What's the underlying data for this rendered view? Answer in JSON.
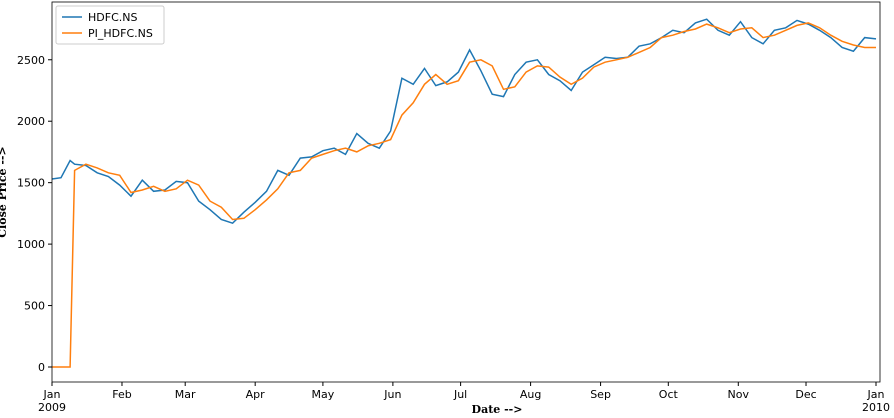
{
  "chart_data": {
    "type": "line",
    "x_label": "Date -->",
    "y_label": "Close Price -->",
    "x": [
      0,
      4,
      8,
      10,
      15,
      20,
      25,
      30,
      35,
      40,
      45,
      50,
      55,
      60,
      65,
      70,
      75,
      80,
      85,
      90,
      95,
      100,
      105,
      110,
      115,
      120,
      125,
      130,
      135,
      140,
      145,
      150,
      155,
      160,
      165,
      170,
      175,
      180,
      185,
      190,
      195,
      200,
      205,
      210,
      215,
      220,
      225,
      230,
      235,
      240,
      245,
      250,
      255,
      260,
      265,
      270,
      275,
      280,
      285,
      290,
      295,
      300,
      305,
      310,
      315,
      320,
      325,
      330,
      335,
      340,
      345,
      350,
      355,
      360,
      365
    ],
    "series": [
      {
        "name": "HDFC.NS",
        "color": "#1f77b4",
        "values": [
          1530,
          1540,
          1680,
          1650,
          1640,
          1580,
          1550,
          1480,
          1390,
          1520,
          1430,
          1440,
          1510,
          1500,
          1350,
          1280,
          1200,
          1170,
          1260,
          1340,
          1430,
          1600,
          1560,
          1700,
          1710,
          1760,
          1780,
          1730,
          1900,
          1820,
          1780,
          1920,
          2350,
          2300,
          2430,
          2290,
          2320,
          2400,
          2580,
          2410,
          2220,
          2200,
          2380,
          2480,
          2500,
          2380,
          2330,
          2250,
          2400,
          2460,
          2520,
          2510,
          2520,
          2610,
          2630,
          2680,
          2740,
          2720,
          2800,
          2830,
          2740,
          2700,
          2810,
          2680,
          2630,
          2740,
          2760,
          2820,
          2790,
          2740,
          2680,
          2600,
          2570,
          2680,
          2670
        ]
      },
      {
        "name": "PI_HDFC.NS",
        "color": "#ff7f0e",
        "values": [
          0,
          0,
          0,
          1600,
          1650,
          1620,
          1580,
          1560,
          1420,
          1440,
          1470,
          1430,
          1450,
          1520,
          1480,
          1350,
          1300,
          1200,
          1210,
          1280,
          1360,
          1450,
          1580,
          1600,
          1700,
          1730,
          1760,
          1780,
          1750,
          1800,
          1820,
          1850,
          2050,
          2150,
          2300,
          2380,
          2300,
          2330,
          2480,
          2500,
          2450,
          2260,
          2280,
          2400,
          2450,
          2440,
          2360,
          2300,
          2350,
          2440,
          2480,
          2500,
          2520,
          2560,
          2600,
          2680,
          2700,
          2730,
          2750,
          2790,
          2760,
          2720,
          2750,
          2760,
          2680,
          2700,
          2740,
          2780,
          2800,
          2760,
          2700,
          2650,
          2620,
          2600,
          2600
        ]
      }
    ],
    "xlim": [
      0,
      365
    ],
    "xticks": [
      {
        "value": 0,
        "label": "Jan",
        "year": "2009"
      },
      {
        "value": 31,
        "label": "Feb"
      },
      {
        "value": 59,
        "label": "Mar"
      },
      {
        "value": 90,
        "label": "Apr"
      },
      {
        "value": 120,
        "label": "May"
      },
      {
        "value": 151,
        "label": "Jun"
      },
      {
        "value": 181,
        "label": "Jul"
      },
      {
        "value": 212,
        "label": "Aug"
      },
      {
        "value": 243,
        "label": "Sep"
      },
      {
        "value": 273,
        "label": "Oct"
      },
      {
        "value": 304,
        "label": "Nov"
      },
      {
        "value": 334,
        "label": "Dec"
      },
      {
        "value": 365,
        "label": "Jan",
        "year": "2010"
      }
    ],
    "ylim": [
      -122,
      2970
    ],
    "yticks": [
      0,
      500,
      1000,
      1500,
      2000,
      2500
    ],
    "legend": "upper left"
  }
}
